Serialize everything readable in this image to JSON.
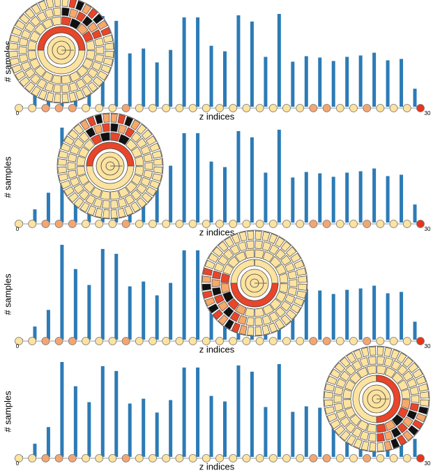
{
  "chart_data": [
    {
      "type": "bar",
      "ylabel": "# samples",
      "xlabel": "z indices",
      "color": "#2c7bb6",
      "values": [
        1,
        19,
        43,
        137,
        102,
        79,
        131,
        124,
        77,
        84,
        64,
        82,
        129,
        129,
        88,
        80,
        132,
        123,
        72,
        134,
        65,
        73,
        71,
        66,
        72,
        74,
        78,
        67,
        69,
        26,
        0
      ],
      "point_colors": [
        "#fde3a0",
        "#fde3a0",
        "#f4a672",
        "#f4a672",
        "#f4a672",
        "#fde3a0",
        "#fde3a0",
        "#fde3a0",
        "#f4a672",
        "#fde3a0",
        "#fde3a0",
        "#fde3a0",
        "#fde3a0",
        "#fde3a0",
        "#fde3a0",
        "#fde3a0",
        "#fde3a0",
        "#fde3a0",
        "#fde3a0",
        "#fde3a0",
        "#fde3a0",
        "#fde3a0",
        "#f4a672",
        "#f4a672",
        "#fde3a0",
        "#fde3a0",
        "#f4a672",
        "#fde3a0",
        "#fde3a0",
        "#fde3a0",
        "#e8341c"
      ],
      "xlim": [
        0,
        30
      ],
      "ylim": [
        0,
        140
      ],
      "xticks": [
        0,
        30
      ]
    },
    {
      "type": "bar",
      "ylabel": "# samples",
      "xlabel": "z indices",
      "color": "#2c7bb6",
      "values": [
        1,
        19,
        43,
        137,
        102,
        79,
        131,
        124,
        77,
        84,
        64,
        82,
        129,
        129,
        88,
        80,
        132,
        123,
        72,
        134,
        65,
        73,
        71,
        66,
        72,
        74,
        78,
        67,
        69,
        26,
        0
      ],
      "point_colors": [
        "#fde3a0",
        "#fde3a0",
        "#f4a672",
        "#f4a672",
        "#f4a672",
        "#fde3a0",
        "#fde3a0",
        "#fde3a0",
        "#f4a672",
        "#fde3a0",
        "#fde3a0",
        "#fde3a0",
        "#fde3a0",
        "#fde3a0",
        "#fde3a0",
        "#fde3a0",
        "#fde3a0",
        "#fde3a0",
        "#fde3a0",
        "#fde3a0",
        "#fde3a0",
        "#fde3a0",
        "#f4a672",
        "#f4a672",
        "#fde3a0",
        "#fde3a0",
        "#f4a672",
        "#fde3a0",
        "#fde3a0",
        "#fde3a0",
        "#e8341c"
      ],
      "xlim": [
        0,
        30
      ],
      "ylim": [
        0,
        140
      ],
      "xticks": [
        0,
        30
      ]
    },
    {
      "type": "bar",
      "ylabel": "# samples",
      "xlabel": "z indices",
      "color": "#2c7bb6",
      "values": [
        1,
        19,
        43,
        137,
        102,
        79,
        131,
        124,
        77,
        84,
        64,
        82,
        129,
        129,
        88,
        80,
        132,
        123,
        72,
        134,
        65,
        73,
        71,
        66,
        72,
        74,
        78,
        67,
        69,
        26,
        0
      ],
      "point_colors": [
        "#fde3a0",
        "#fde3a0",
        "#f4a672",
        "#f4a672",
        "#f4a672",
        "#fde3a0",
        "#fde3a0",
        "#fde3a0",
        "#f4a672",
        "#fde3a0",
        "#fde3a0",
        "#fde3a0",
        "#fde3a0",
        "#fde3a0",
        "#fde3a0",
        "#fde3a0",
        "#fde3a0",
        "#fde3a0",
        "#fde3a0",
        "#fde3a0",
        "#fde3a0",
        "#fde3a0",
        "#f4a672",
        "#f4a672",
        "#fde3a0",
        "#fde3a0",
        "#f4a672",
        "#fde3a0",
        "#fde3a0",
        "#fde3a0",
        "#e8341c"
      ],
      "xlim": [
        0,
        30
      ],
      "ylim": [
        0,
        140
      ],
      "xticks": [
        0,
        30
      ]
    },
    {
      "type": "bar",
      "ylabel": "# samples",
      "xlabel": "z indices",
      "color": "#2c7bb6",
      "values": [
        1,
        19,
        43,
        137,
        102,
        79,
        131,
        124,
        77,
        84,
        64,
        82,
        129,
        129,
        88,
        80,
        132,
        123,
        72,
        134,
        65,
        73,
        71,
        66,
        72,
        74,
        78,
        67,
        69,
        26,
        0
      ],
      "point_colors": [
        "#fde3a0",
        "#fde3a0",
        "#f4a672",
        "#f4a672",
        "#f4a672",
        "#fde3a0",
        "#fde3a0",
        "#fde3a0",
        "#f4a672",
        "#fde3a0",
        "#fde3a0",
        "#fde3a0",
        "#fde3a0",
        "#fde3a0",
        "#fde3a0",
        "#fde3a0",
        "#fde3a0",
        "#fde3a0",
        "#fde3a0",
        "#fde3a0",
        "#fde3a0",
        "#fde3a0",
        "#f4a672",
        "#f4a672",
        "#fde3a0",
        "#fde3a0",
        "#f4a672",
        "#fde3a0",
        "#fde3a0",
        "#fde3a0",
        "#e8341c"
      ],
      "xlim": [
        0,
        30
      ],
      "ylim": [
        0,
        140
      ],
      "xticks": [
        0,
        30
      ]
    }
  ]
}
